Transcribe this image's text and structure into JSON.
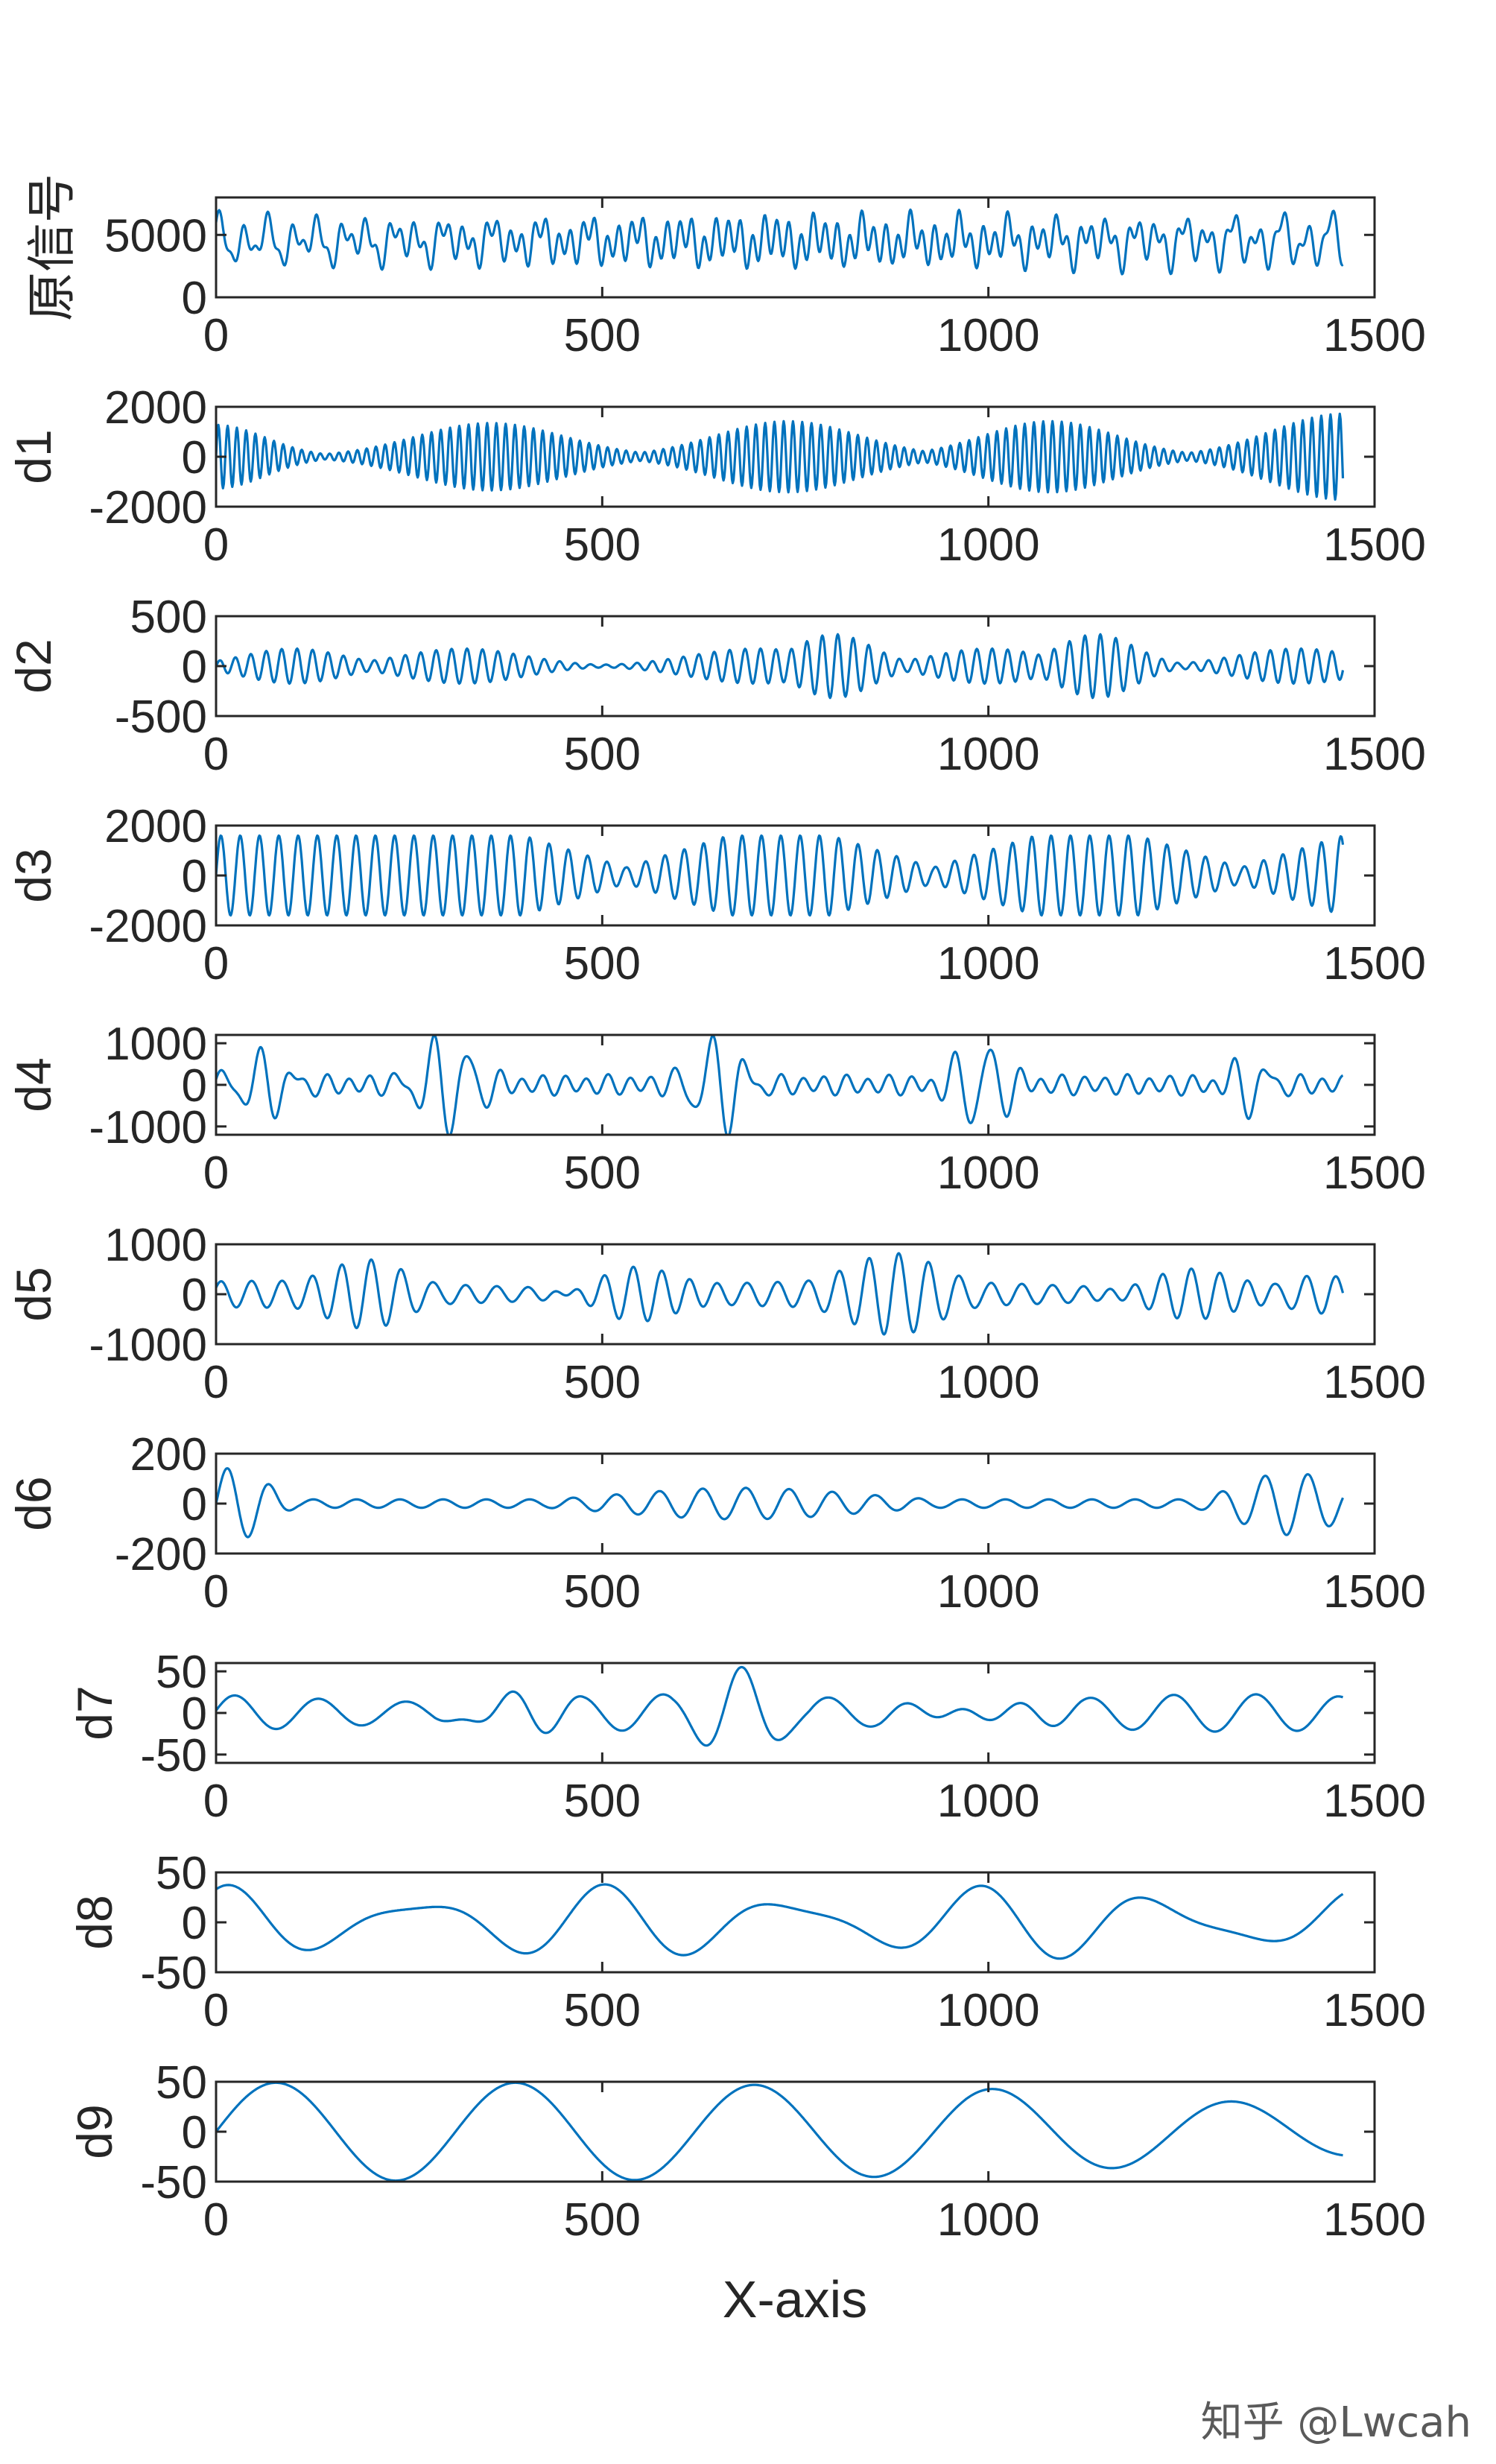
{
  "watermark": "知乎 @Lwcah",
  "colors": {
    "line": "#0072BD",
    "axes": "#262626"
  },
  "chart_data": {
    "type": "line",
    "xlabel": "X-axis",
    "xlim": [
      0,
      1500
    ],
    "xticks": [
      "0",
      "500",
      "1000",
      "1500"
    ],
    "n_points": 1460,
    "panels": [
      {
        "ylabel": "原信号",
        "ylim": [
          0,
          8000
        ],
        "yticks": [
          0,
          5000
        ],
        "ytick_labels": [
          "0",
          "5000"
        ],
        "signal": {
          "offset": 4500,
          "components": [
            {
              "amp": 1500,
              "period": 15.7,
              "env": [
                0.35,
                1.0,
                0.45
              ]
            },
            {
              "amp": 1500,
              "period": 32,
              "env": [
                0.9,
                0.25,
                1.0
              ]
            },
            {
              "amp": 900,
              "period": 60,
              "env": [
                0.7,
                0.7,
                0.7
              ]
            }
          ]
        }
      },
      {
        "ylabel": "d1",
        "ylim": [
          -2000,
          2000
        ],
        "yticks": [
          -2000,
          0,
          2000
        ],
        "ytick_labels": [
          "-2000",
          "0",
          "2000"
        ],
        "signal": {
          "offset": 0,
          "components": [
            {
              "amp": 1500,
              "period": 12,
              "bursts": [
                [
                  0,
                  90,
                  0.85
                ],
                [
                  355,
                  135,
                  0.9
                ],
                [
                  740,
                  130,
                  0.95
                ],
                [
                  1080,
                  120,
                  0.95
                ],
                [
                  1460,
                  130,
                  1.15
                ]
              ],
              "floor": 0.03
            }
          ]
        }
      },
      {
        "ylabel": "d2",
        "ylim": [
          -500,
          500
        ],
        "yticks": [
          -500,
          0,
          500
        ],
        "ytick_labels": [
          "-500",
          "0",
          "500"
        ],
        "signal": {
          "offset": 0,
          "components": [
            {
              "amp": 320,
              "period": 20,
              "bursts": [
                [
                  100,
                  90,
                  0.55
                ],
                [
                  320,
                  110,
                  0.55
                ],
                [
                  700,
                  120,
                  0.55
                ],
                [
                  800,
                  70,
                  1.0
                ],
                [
                  1000,
                  100,
                  0.55
                ],
                [
                  1140,
                  70,
                  1.0
                ],
                [
                  1400,
                  110,
                  0.55
                ]
              ],
              "floor": 0.05
            }
          ]
        }
      },
      {
        "ylabel": "d3",
        "ylim": [
          -2000,
          2000
        ],
        "yticks": [
          -2000,
          0,
          2000
        ],
        "ytick_labels": [
          "-2000",
          "0",
          "2000"
        ],
        "signal": {
          "offset": 0,
          "components": [
            {
              "amp": 1600,
              "period": 25,
              "env": [
                1.0,
                1.0,
                1.0,
                1.0,
                0.2,
                1.0,
                1.0,
                0.2,
                1.0,
                1.0,
                0.2,
                1.0
              ]
            }
          ]
        }
      },
      {
        "ylabel": "d4",
        "ylim": [
          -1200,
          1200
        ],
        "yticks": [
          -1000,
          0,
          1000
        ],
        "ytick_labels": [
          "-1000",
          "0",
          "1000"
        ],
        "signal": {
          "offset": 0,
          "components": [
            {
              "amp": 1150,
              "period": 45,
              "bursts": [
                [
                  60,
                  50,
                  0.65
                ],
                [
                  300,
                  50,
                  1.0
                ],
                [
                  650,
                  45,
                  1.0
                ],
                [
                  990,
                  45,
                  0.9
                ],
                [
                  1340,
                  35,
                  0.6
                ]
              ],
              "floor": 0.05
            },
            {
              "amp": 250,
              "period": 28,
              "env": [
                0.8,
                0.8,
                0.8,
                0.8
              ]
            }
          ]
        }
      },
      {
        "ylabel": "d5",
        "ylim": [
          -1000,
          1000
        ],
        "yticks": [
          -1000,
          0,
          1000
        ],
        "ytick_labels": [
          "-1000",
          "0",
          "1000"
        ],
        "signal": {
          "offset": 0,
          "components": [
            {
              "amp": 700,
              "period": 38,
              "bursts": [
                [
                  200,
                  70,
                  0.8
                ],
                [
                  540,
                  80,
                  1.0
                ],
                [
                  880,
                  80,
                  0.9
                ],
                [
                  1260,
                  90,
                  1.0
                ],
                [
                  1420,
                  60,
                  0.45
                ]
              ],
              "floor": 0.1
            },
            {
              "amp": 200,
              "period": 40,
              "env": [
                1.0,
                1.0,
                1.0,
                1.0
              ]
            }
          ]
        }
      },
      {
        "ylabel": "d6",
        "ylim": [
          -200,
          200
        ],
        "yticks": [
          -200,
          0,
          200
        ],
        "ytick_labels": [
          "-200",
          "0",
          "200"
        ],
        "signal": {
          "offset": 0,
          "components": [
            {
              "amp": 140,
              "period": 56,
              "bursts": [
                [
                  25,
                  55,
                  1.05
                ],
                [
                  680,
                  220,
                  0.45
                ],
                [
                  1390,
                  90,
                  0.9
                ]
              ],
              "floor": 0.12
            }
          ]
        }
      },
      {
        "ylabel": "d7",
        "ylim": [
          -60,
          60
        ],
        "yticks": [
          -50,
          0,
          50
        ],
        "ytick_labels": [
          "-50",
          "0",
          "50"
        ],
        "signal": {
          "offset": 0,
          "components": [
            {
              "amp": 30,
              "period": 110,
              "env": [
                0.6,
                0.6,
                0.6,
                0.6
              ]
            },
            {
              "amp": 30,
              "period": 95,
              "bursts": [
                [
                  380,
                  70,
                  1.0
                ],
                [
                  680,
                  60,
                  1.3
                ],
                [
                  990,
                  100,
                  0.8
                ]
              ],
              "floor": 0.15
            }
          ]
        }
      },
      {
        "ylabel": "d8",
        "ylim": [
          -50,
          50
        ],
        "yticks": [
          -50,
          0,
          50
        ],
        "ytick_labels": [
          "-50",
          "0",
          "50"
        ],
        "signal": {
          "offset": 0,
          "components": [
            {
              "amp": 26,
              "period": 240,
              "phase": 1.0,
              "env": [
                1.0,
                1.0,
                1.0
              ]
            },
            {
              "amp": 12,
              "period": 165,
              "phase": 0.5,
              "env": [
                1.0,
                1.0,
                1.0
              ]
            }
          ]
        }
      },
      {
        "ylabel": "d9",
        "ylim": [
          -50,
          50
        ],
        "yticks": [
          -50,
          0,
          50
        ],
        "ytick_labels": [
          "-50",
          "0",
          "50"
        ],
        "signal": {
          "offset": 0,
          "components": [
            {
              "amp": 49,
              "period": 310,
              "env": [
                1.0,
                1.0,
                0.9,
                0.5
              ]
            }
          ]
        }
      }
    ]
  }
}
